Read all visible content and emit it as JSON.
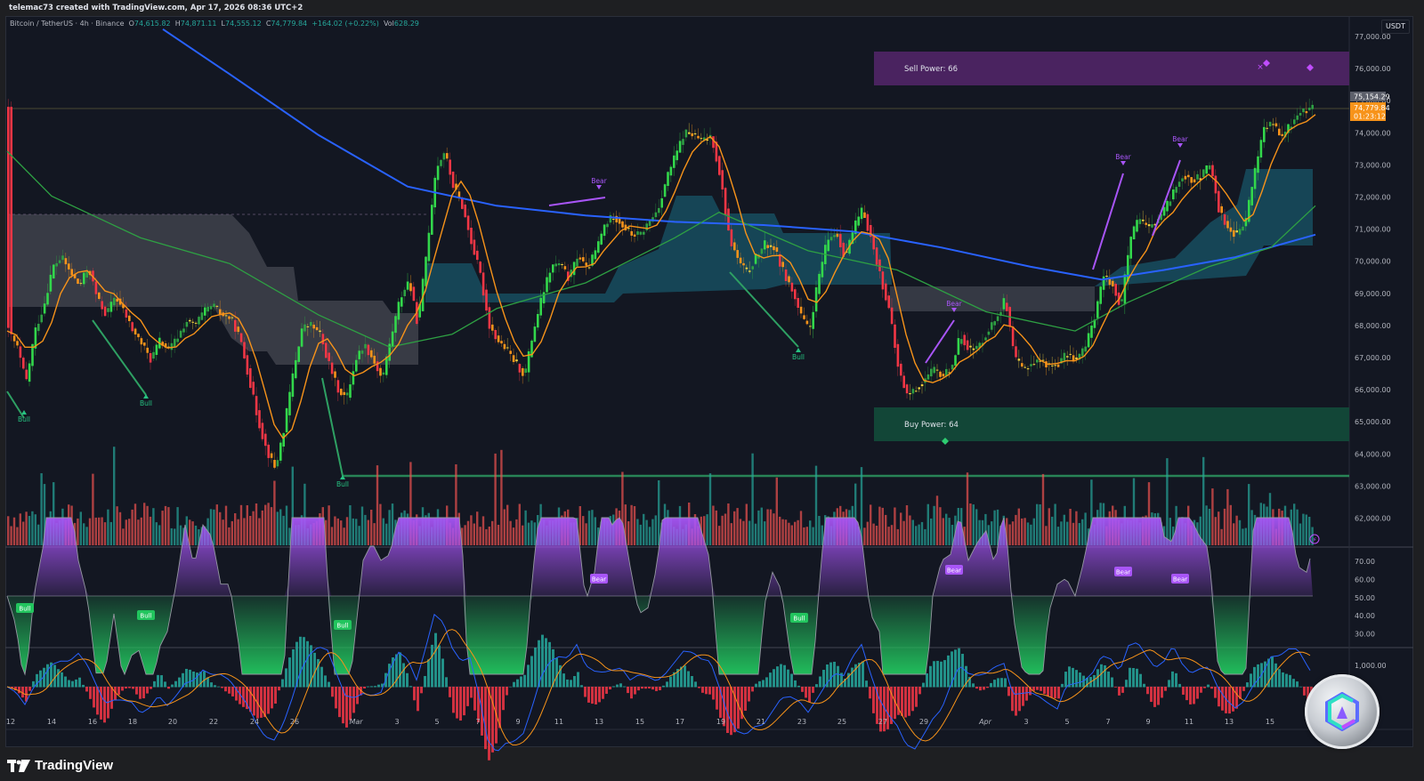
{
  "header": {
    "credit": "telemac73 created with TradingView.com, Apr 17, 2026 08:36 UTC+2"
  },
  "legend": {
    "symbol": "Bitcoin / TetherUS · 4h · Binance",
    "open_label": "O",
    "open": "74,615.82",
    "high_label": "H",
    "high": "74,871.11",
    "low_label": "L",
    "low": "74,555.12",
    "close_label": "C",
    "close": "74,779.84",
    "change": "+164.02 (+0.22%)",
    "vol_label": "Vol",
    "vol": "628.29"
  },
  "price_axis": {
    "currency": "USDT",
    "ticks": [
      "77,000.00",
      "76,000.00",
      "75,000.00",
      "74,000.00",
      "73,000.00",
      "72,000.00",
      "71,000.00",
      "70,000.00",
      "69,000.00",
      "68,000.00",
      "67,000.00",
      "66,000.00",
      "65,000.00",
      "64,000.00",
      "63,000.00",
      "62,000.00"
    ],
    "high_marker": "75,154.29",
    "last_price": "74,779.84",
    "countdown": "01:23:12"
  },
  "oscillator_axis": {
    "ticks": [
      "70.00",
      "60.00",
      "50.00",
      "40.00",
      "30.00"
    ]
  },
  "macd_axis": {
    "ticks": [
      "1,000.00"
    ]
  },
  "time_axis": {
    "ticks": [
      "12",
      "14",
      "16",
      "18",
      "20",
      "22",
      "24",
      "26",
      "Mar",
      "3",
      "5",
      "7",
      "9",
      "11",
      "13",
      "15",
      "17",
      "19",
      "21",
      "23",
      "25",
      "27",
      "29",
      "Apr",
      "3",
      "5",
      "7",
      "9",
      "11",
      "13",
      "15"
    ]
  },
  "zones": {
    "sell_power": "Sell Power: 66",
    "buy_power": "Buy Power: 64"
  },
  "signals": {
    "bull": "Bull",
    "bear": "Bear"
  },
  "footer": {
    "brand": "TradingView"
  },
  "colors": {
    "background": "#131722",
    "bull_candle": "#32d74b",
    "bear_candle": "#f23645",
    "ema_fast": "#f7931a",
    "ema_mid": "#2ea043",
    "ema_slow": "#2962ff",
    "sell_zone": "#4a2360",
    "buy_zone": "#124637",
    "cloud_bull": "#16485a",
    "cloud_bear": "#3a3d48",
    "osc_bear": "#a855f7",
    "osc_bull": "#22c55e",
    "vol_up": "#26a69a",
    "vol_down": "#ef5350",
    "last_price_tag": "#f7931a"
  },
  "chart_data": {
    "type": "candlestick",
    "title": "Bitcoin / TetherUS · 4h · Binance",
    "ylabel": "USDT",
    "ylim": [
      61500,
      77300
    ],
    "x_labels": [
      "12",
      "14",
      "16",
      "18",
      "20",
      "22",
      "24",
      "26",
      "Mar",
      "3",
      "5",
      "7",
      "9",
      "11",
      "13",
      "15",
      "17",
      "19",
      "21",
      "23",
      "25",
      "27",
      "29",
      "Apr",
      "3",
      "5",
      "7",
      "9",
      "11",
      "13",
      "15"
    ],
    "close_path": [
      [
        0,
        67800
      ],
      [
        10,
        67300
      ],
      [
        20,
        66200
      ],
      [
        30,
        67800
      ],
      [
        40,
        68600
      ],
      [
        50,
        69800
      ],
      [
        60,
        70100
      ],
      [
        70,
        69600
      ],
      [
        80,
        69200
      ],
      [
        90,
        69800
      ],
      [
        100,
        68800
      ],
      [
        110,
        68300
      ],
      [
        120,
        68900
      ],
      [
        130,
        68400
      ],
      [
        140,
        67800
      ],
      [
        150,
        67400
      ],
      [
        160,
        66900
      ],
      [
        170,
        67500
      ],
      [
        180,
        67200
      ],
      [
        190,
        67600
      ],
      [
        200,
        68100
      ],
      [
        210,
        68000
      ],
      [
        220,
        68400
      ],
      [
        230,
        68600
      ],
      [
        240,
        68300
      ],
      [
        250,
        68200
      ],
      [
        260,
        67600
      ],
      [
        270,
        66400
      ],
      [
        280,
        65100
      ],
      [
        290,
        64100
      ],
      [
        300,
        63500
      ],
      [
        310,
        64800
      ],
      [
        320,
        66500
      ],
      [
        330,
        67900
      ],
      [
        340,
        68000
      ],
      [
        350,
        67700
      ],
      [
        360,
        66800
      ],
      [
        370,
        66000
      ],
      [
        380,
        65700
      ],
      [
        390,
        66900
      ],
      [
        400,
        67400
      ],
      [
        410,
        66900
      ],
      [
        420,
        66300
      ],
      [
        430,
        67600
      ],
      [
        440,
        68800
      ],
      [
        450,
        69400
      ],
      [
        460,
        68000
      ],
      [
        470,
        70300
      ],
      [
        480,
        72800
      ],
      [
        490,
        73400
      ],
      [
        500,
        72300
      ],
      [
        510,
        71700
      ],
      [
        520,
        70600
      ],
      [
        530,
        69600
      ],
      [
        540,
        68000
      ],
      [
        550,
        67500
      ],
      [
        560,
        67200
      ],
      [
        570,
        66800
      ],
      [
        580,
        66400
      ],
      [
        590,
        67800
      ],
      [
        600,
        68900
      ],
      [
        610,
        69800
      ],
      [
        620,
        69900
      ],
      [
        630,
        69400
      ],
      [
        640,
        70200
      ],
      [
        650,
        69700
      ],
      [
        660,
        70300
      ],
      [
        670,
        71100
      ],
      [
        680,
        71400
      ],
      [
        690,
        71100
      ],
      [
        700,
        70800
      ],
      [
        710,
        70800
      ],
      [
        720,
        71200
      ],
      [
        730,
        71600
      ],
      [
        740,
        72600
      ],
      [
        750,
        73300
      ],
      [
        760,
        74000
      ],
      [
        770,
        73900
      ],
      [
        780,
        73700
      ],
      [
        790,
        73900
      ],
      [
        800,
        72600
      ],
      [
        810,
        70700
      ],
      [
        820,
        70000
      ],
      [
        830,
        69600
      ],
      [
        840,
        70100
      ],
      [
        850,
        70500
      ],
      [
        860,
        70400
      ],
      [
        870,
        69700
      ],
      [
        880,
        69100
      ],
      [
        890,
        68300
      ],
      [
        900,
        67800
      ],
      [
        910,
        69400
      ],
      [
        920,
        70600
      ],
      [
        930,
        70900
      ],
      [
        940,
        70100
      ],
      [
        950,
        71000
      ],
      [
        960,
        71600
      ],
      [
        970,
        70600
      ],
      [
        980,
        69500
      ],
      [
        990,
        68400
      ],
      [
        1000,
        66600
      ],
      [
        1010,
        65800
      ],
      [
        1020,
        66000
      ],
      [
        1030,
        66300
      ],
      [
        1040,
        66600
      ],
      [
        1050,
        66400
      ],
      [
        1060,
        66700
      ],
      [
        1070,
        67700
      ],
      [
        1080,
        67200
      ],
      [
        1090,
        67300
      ],
      [
        1100,
        67800
      ],
      [
        1110,
        68200
      ],
      [
        1120,
        68800
      ],
      [
        1130,
        67000
      ],
      [
        1140,
        66600
      ],
      [
        1150,
        66800
      ],
      [
        1160,
        66900
      ],
      [
        1170,
        66700
      ],
      [
        1180,
        66800
      ],
      [
        1190,
        67100
      ],
      [
        1200,
        66900
      ],
      [
        1210,
        67300
      ],
      [
        1220,
        68200
      ],
      [
        1230,
        69500
      ],
      [
        1240,
        69300
      ],
      [
        1250,
        68500
      ],
      [
        1260,
        70600
      ],
      [
        1270,
        71300
      ],
      [
        1280,
        71000
      ],
      [
        1290,
        71200
      ],
      [
        1300,
        71600
      ],
      [
        1310,
        72200
      ],
      [
        1320,
        72700
      ],
      [
        1330,
        72500
      ],
      [
        1340,
        72600
      ],
      [
        1350,
        73000
      ],
      [
        1360,
        71600
      ],
      [
        1370,
        71000
      ],
      [
        1380,
        70800
      ],
      [
        1390,
        71200
      ],
      [
        1400,
        72700
      ],
      [
        1410,
        74100
      ],
      [
        1420,
        74300
      ],
      [
        1430,
        73800
      ],
      [
        1440,
        74200
      ],
      [
        1450,
        74600
      ],
      [
        1460,
        74700
      ],
      [
        1470,
        74780
      ]
    ],
    "ema_slow_path": [
      [
        175,
        77200
      ],
      [
        250,
        75800
      ],
      [
        350,
        73900
      ],
      [
        450,
        72300
      ],
      [
        550,
        71700
      ],
      [
        650,
        71400
      ],
      [
        750,
        71200
      ],
      [
        850,
        71100
      ],
      [
        950,
        70900
      ],
      [
        1050,
        70400
      ],
      [
        1150,
        69800
      ],
      [
        1230,
        69400
      ],
      [
        1300,
        69700
      ],
      [
        1380,
        70100
      ],
      [
        1470,
        70800
      ]
    ],
    "ema_mid_path": [
      [
        0,
        73400
      ],
      [
        50,
        72000
      ],
      [
        150,
        70700
      ],
      [
        250,
        69900
      ],
      [
        350,
        68300
      ],
      [
        430,
        67300
      ],
      [
        500,
        67700
      ],
      [
        550,
        68500
      ],
      [
        650,
        69300
      ],
      [
        750,
        70700
      ],
      [
        800,
        71500
      ],
      [
        900,
        70300
      ],
      [
        1000,
        69700
      ],
      [
        1100,
        68400
      ],
      [
        1200,
        67800
      ],
      [
        1260,
        68700
      ],
      [
        1350,
        69800
      ],
      [
        1420,
        70400
      ],
      [
        1470,
        71700
      ]
    ],
    "sell_zone": {
      "top": 76450,
      "bottom": 75450,
      "x_start_label": "27",
      "text": "Sell Power: 66"
    },
    "buy_zone": {
      "top": 65400,
      "bottom": 64400,
      "x_start_label": "27",
      "text": "Buy Power: 64"
    },
    "support_line": 63350,
    "signals": [
      {
        "type": "Bull",
        "x": "12",
        "price": 65150
      },
      {
        "type": "Bull",
        "x": "16",
        "price": 65900
      },
      {
        "type": "Bull",
        "x": "Mar",
        "price": 63300
      },
      {
        "type": "Bear",
        "x": "13",
        "price": 71900
      },
      {
        "type": "Bull",
        "x": "23",
        "price": 67100
      },
      {
        "type": "Bear",
        "x": "29",
        "price": 68600
      },
      {
        "type": "Bear",
        "x": "7",
        "price": 73000
      },
      {
        "type": "Bear",
        "x": "11",
        "price": 73300
      }
    ],
    "oscillator": {
      "ylim": [
        25,
        75
      ],
      "midline": 50,
      "labels": {
        "bull_count": 4,
        "bear_count": 4
      }
    },
    "macd": {
      "label_tick": "1,000.00"
    }
  }
}
